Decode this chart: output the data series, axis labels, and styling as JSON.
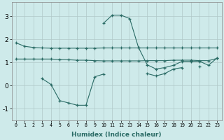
{
  "xlabel": "Humidex (Indice chaleur)",
  "background_color": "#ceeaea",
  "grid_color": "#b0c8c8",
  "line_color": "#2a6b65",
  "xlim": [
    -0.5,
    23.5
  ],
  "ylim": [
    -1.5,
    3.6
  ],
  "yticks": [
    -1,
    0,
    1,
    2,
    3
  ],
  "x_ticks": [
    0,
    1,
    2,
    3,
    4,
    5,
    6,
    7,
    8,
    9,
    10,
    11,
    12,
    13,
    14,
    15,
    16,
    17,
    18,
    19,
    20,
    21,
    22,
    23
  ],
  "series": [
    [
      1.85,
      1.7,
      1.65,
      1.63,
      1.62,
      1.62,
      1.62,
      1.62,
      1.62,
      1.62,
      1.63,
      1.63,
      1.63,
      1.63,
      1.63,
      1.63,
      1.63,
      1.63,
      1.63,
      1.63,
      1.63,
      1.63,
      1.63,
      1.63
    ],
    [
      1.15,
      1.15,
      1.15,
      1.15,
      1.15,
      1.13,
      1.12,
      1.1,
      1.1,
      1.08,
      1.07,
      1.07,
      1.07,
      1.07,
      1.07,
      1.08,
      1.08,
      1.08,
      1.1,
      1.1,
      1.1,
      1.08,
      1.08,
      1.18
    ],
    [
      null,
      null,
      null,
      0.3,
      0.05,
      -0.65,
      -0.75,
      -0.85,
      -0.85,
      0.38,
      0.5,
      null,
      null,
      null,
      null,
      0.52,
      0.42,
      0.52,
      0.72,
      0.78,
      null,
      0.82,
      null,
      null
    ],
    [
      null,
      null,
      null,
      null,
      null,
      null,
      null,
      null,
      null,
      null,
      2.7,
      3.05,
      3.05,
      2.9,
      1.65,
      0.9,
      0.72,
      0.78,
      0.88,
      1.05,
      1.05,
      1.05,
      0.88,
      1.2
    ]
  ]
}
